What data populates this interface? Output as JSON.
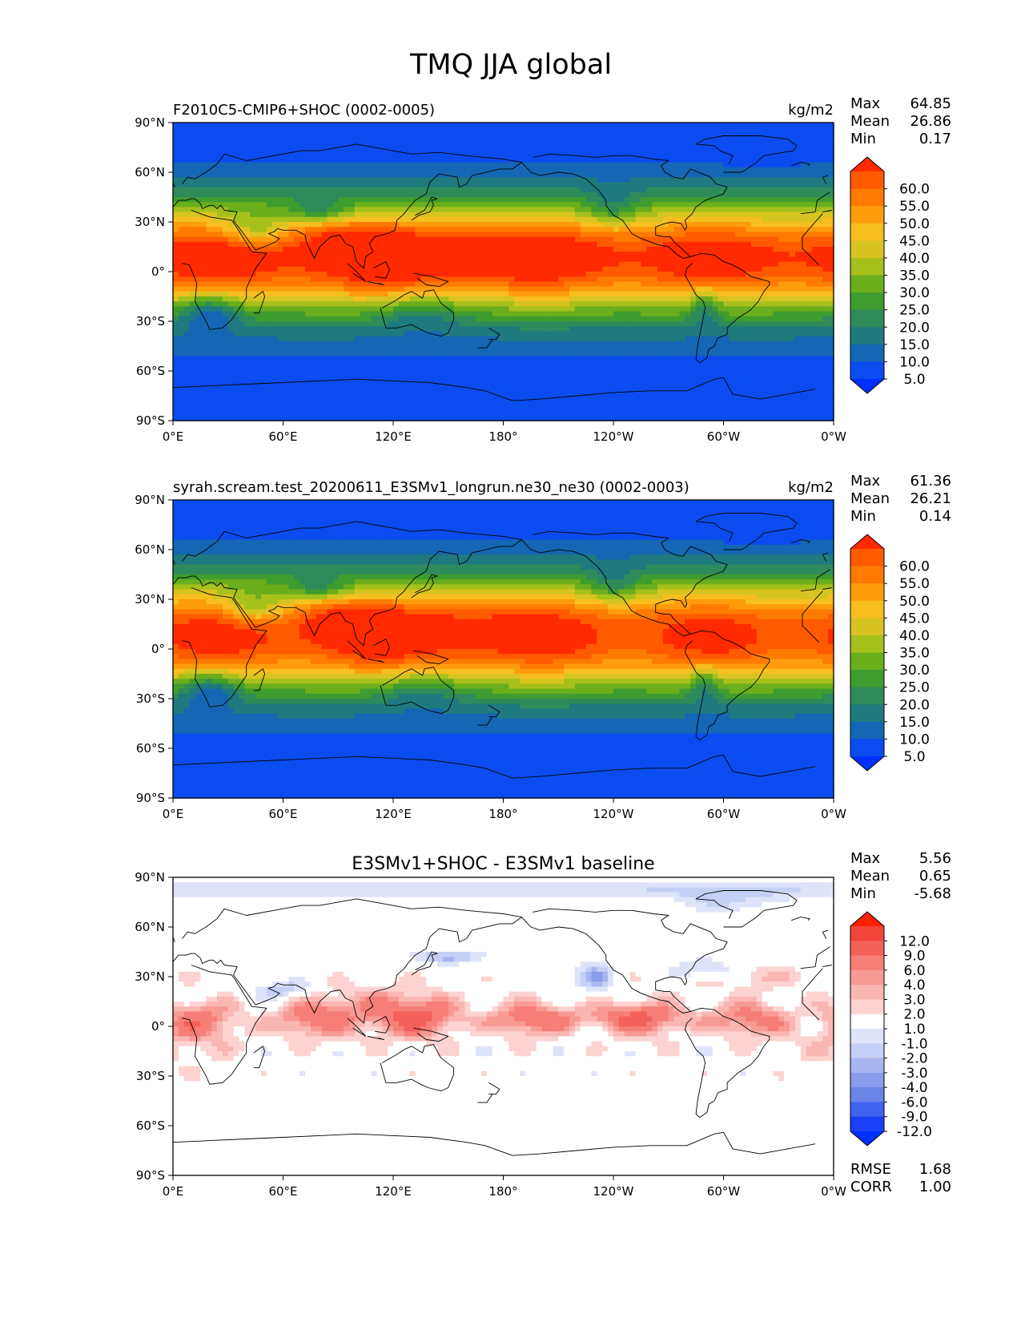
{
  "figure": {
    "title": "TMQ JJA global"
  },
  "x_ticks": [
    "0°E",
    "60°E",
    "120°E",
    "180°",
    "120°W",
    "60°W",
    "0°W"
  ],
  "y_ticks": [
    "90°N",
    "60°N",
    "30°N",
    "0°",
    "30°S",
    "60°S",
    "90°S"
  ],
  "chart_data": [
    {
      "type": "heatmap",
      "title": "F2010C5-CMIP6+SHOC (0002-0005)",
      "units": "kg/m2",
      "stats": [
        {
          "label": "Max",
          "value": "64.85"
        },
        {
          "label": "Mean",
          "value": "26.86"
        },
        {
          "label": "Min",
          "value": "0.17"
        }
      ],
      "colorbar": {
        "labels": [
          "60.0",
          "55.0",
          "50.0",
          "45.0",
          "40.0",
          "35.0",
          "30.0",
          "25.0",
          "20.0",
          "15.0",
          "10.0",
          "5.0"
        ],
        "colors": [
          "#ff2a00",
          "#ff5a00",
          "#ff7a00",
          "#ff9c0c",
          "#f7be20",
          "#d8c420",
          "#a6c01c",
          "#6aae1c",
          "#3f9c2e",
          "#2f8a5a",
          "#1e7a7e",
          "#1467b4",
          "#0a4cf0",
          "#0030ff"
        ]
      },
      "field": "model_a",
      "xlim": [
        0,
        360
      ],
      "ylim": [
        -90,
        90
      ]
    },
    {
      "type": "heatmap",
      "title": "syrah.scream.test_20200611_E3SMv1_longrun.ne30_ne30 (0002-0003)",
      "units": "kg/m2",
      "stats": [
        {
          "label": "Max",
          "value": "61.36"
        },
        {
          "label": "Mean",
          "value": "26.21"
        },
        {
          "label": "Min",
          "value": "0.14"
        }
      ],
      "colorbar": {
        "labels": [
          "60.0",
          "55.0",
          "50.0",
          "45.0",
          "40.0",
          "35.0",
          "30.0",
          "25.0",
          "20.0",
          "15.0",
          "10.0",
          "5.0"
        ],
        "colors": [
          "#ff2a00",
          "#ff5a00",
          "#ff7a00",
          "#ff9c0c",
          "#f7be20",
          "#d8c420",
          "#a6c01c",
          "#6aae1c",
          "#3f9c2e",
          "#2f8a5a",
          "#1e7a7e",
          "#1467b4",
          "#0a4cf0",
          "#0030ff"
        ]
      },
      "field": "model_b",
      "xlim": [
        0,
        360
      ],
      "ylim": [
        -90,
        90
      ]
    },
    {
      "type": "heatmap",
      "title": "E3SMv1+SHOC - E3SMv1 baseline",
      "units": "",
      "stats": [
        {
          "label": "Max",
          "value": "5.56"
        },
        {
          "label": "Mean",
          "value": "0.65"
        },
        {
          "label": "Min",
          "value": "-5.68"
        }
      ],
      "extra_stats": [
        {
          "label": "RMSE",
          "value": "1.68"
        },
        {
          "label": "CORR",
          "value": "1.00"
        }
      ],
      "colorbar": {
        "labels": [
          "12.0",
          "9.0",
          "6.0",
          "4.0",
          "3.0",
          "2.0",
          "1.0",
          "-1.0",
          "-2.0",
          "-3.0",
          "-4.0",
          "-6.0",
          "-9.0",
          "-12.0"
        ],
        "colors": [
          "#ff2000",
          "#f2453a",
          "#f4615a",
          "#f67e78",
          "#f89a94",
          "#fab7b2",
          "#fcd3d0",
          "#ffffff",
          "#dfe3fa",
          "#c6cff5",
          "#a8b6f0",
          "#8a9deb",
          "#6a84e8",
          "#3f62ef",
          "#1a40f5",
          "#0030ff"
        ]
      },
      "field": "difference",
      "xlim": [
        0,
        360
      ],
      "ylim": [
        -90,
        90
      ]
    }
  ]
}
